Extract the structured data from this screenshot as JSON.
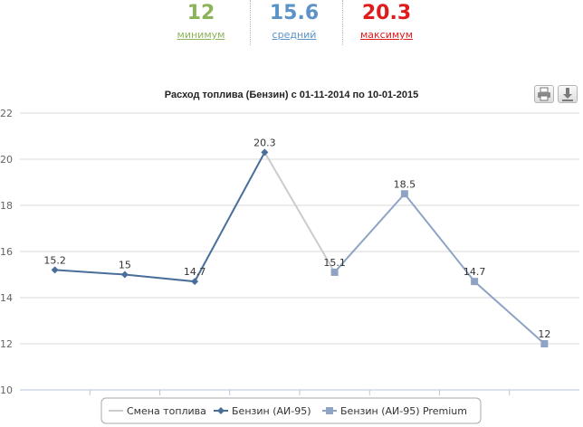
{
  "summary": {
    "min": {
      "value": "12",
      "label": "минимум",
      "color": "#8bb45a"
    },
    "avg": {
      "value": "15.6",
      "label": "средний",
      "color": "#5b93c7"
    },
    "max": {
      "value": "20.3",
      "label": "максимум",
      "color": "#e01b1b"
    }
  },
  "toolbar": {
    "print_icon": "printer-icon",
    "download_icon": "download-icon"
  },
  "chart_data": {
    "type": "line",
    "title": "Расход топлива (Бензин) с 01-11-2014 по 10-01-2015",
    "xlabel": "",
    "ylabel": "",
    "ylim": [
      10,
      22
    ],
    "yticks": [
      10,
      12,
      14,
      16,
      18,
      20,
      22
    ],
    "grid": true,
    "legend_position": "bottom-center",
    "point_labels": [
      "15.2",
      "15",
      "14.7",
      "20.3",
      "15.1",
      "18.5",
      "14.7",
      "12"
    ],
    "series": [
      {
        "name": "Смена топлива",
        "color": "#cccccc",
        "marker": "none",
        "x": [
          3,
          4
        ],
        "values": [
          20.3,
          15.1
        ]
      },
      {
        "name": "Бензин (АИ-95)",
        "color": "#4a6e9a",
        "marker": "diamond",
        "x": [
          0,
          1,
          2,
          3
        ],
        "values": [
          15.2,
          15,
          14.7,
          20.3
        ]
      },
      {
        "name": "Бензин (АИ-95) Premium",
        "color": "#8fa4c4",
        "marker": "square",
        "x": [
          4,
          5,
          6,
          7
        ],
        "values": [
          15.1,
          18.5,
          14.7,
          12
        ]
      }
    ]
  }
}
